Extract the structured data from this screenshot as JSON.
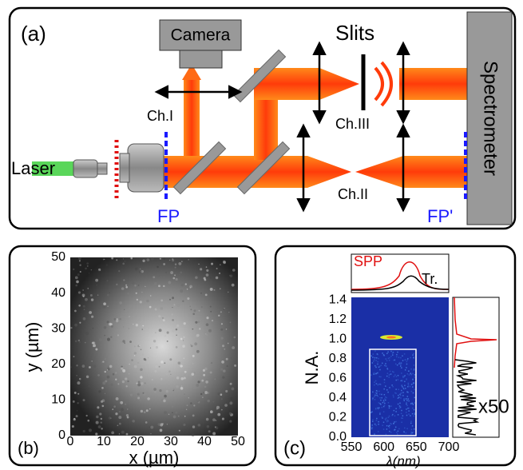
{
  "panel_a": {
    "label": "(a)",
    "camera": "Camera",
    "slits": "Slits",
    "spectrometer": "Spectrometer",
    "laser": "Laser",
    "channels": [
      "Ch.I",
      "Ch.II",
      "Ch.III"
    ],
    "focal_planes": [
      "FP",
      "FP'"
    ]
  },
  "panel_b": {
    "label": "(b)",
    "x_label": "x (µm)",
    "y_label": "y (µm)",
    "x_ticks": [
      "0",
      "10",
      "20",
      "30",
      "40",
      "50"
    ],
    "y_ticks": [
      "0",
      "10",
      "20",
      "30",
      "40",
      "50"
    ]
  },
  "panel_c": {
    "label": "(c)",
    "top_legend": [
      "SPP",
      "Tr."
    ],
    "y_label": "N.A.",
    "x_label": "λ(nm)",
    "x_ticks": [
      "550",
      "600",
      "650",
      "700"
    ],
    "y_ticks": [
      "0.0",
      "0.2",
      "0.4",
      "0.6",
      "0.8",
      "1.0",
      "1.2",
      "1.4"
    ],
    "scale_note": "x50"
  }
}
